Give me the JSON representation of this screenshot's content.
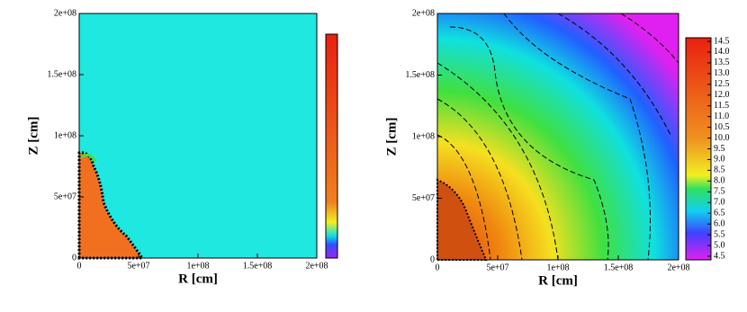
{
  "chart_data": [
    {
      "type": "heatmap",
      "xlabel": "R [cm]",
      "ylabel": "Z [cm]",
      "xlim": [
        0,
        200000000
      ],
      "ylim": [
        0,
        200000000
      ],
      "xticks": [
        0,
        {
          "value": 50000000,
          "label": "5e+07"
        },
        {
          "value": 100000000,
          "label": "1e+08"
        },
        {
          "value": 150000000,
          "label": "1.5e+08"
        },
        {
          "value": 200000000,
          "label": "2e+08"
        }
      ],
      "yticks": [
        0,
        {
          "value": 50000000,
          "label": "5e+07"
        },
        {
          "value": 100000000,
          "label": "1e+08"
        },
        {
          "value": 150000000,
          "label": "1.5e+08"
        },
        {
          "value": 200000000,
          "label": "2e+08"
        }
      ]
    },
    {
      "type": "heatmap",
      "xlabel": "R [cm]",
      "ylabel": "Z [cm]",
      "xlim": [
        0,
        200000000
      ],
      "ylim": [
        0,
        200000000
      ],
      "xticks": [
        0,
        {
          "value": 50000000,
          "label": "5e+07"
        },
        {
          "value": 100000000,
          "label": "1e+08"
        },
        {
          "value": 150000000,
          "label": "1.5e+08"
        },
        {
          "value": 200000000,
          "label": "2e+08"
        }
      ],
      "yticks": [
        0,
        {
          "value": 50000000,
          "label": "5e+07"
        },
        {
          "value": 100000000,
          "label": "1e+08"
        },
        {
          "value": 150000000,
          "label": "1.5e+08"
        },
        {
          "value": 200000000,
          "label": "2e+08"
        }
      ],
      "colorbar": {
        "clim": [
          4.5,
          14.5
        ],
        "ticks": [
          4.5,
          {
            "value": 5,
            "label": "5.0"
          },
          5.5,
          {
            "value": 6,
            "label": "6.0"
          },
          6.5,
          {
            "value": 7,
            "label": "7.0"
          },
          7.5,
          {
            "value": 8,
            "label": "8.0"
          },
          8.5,
          {
            "value": 9,
            "label": "9.0"
          },
          9.5,
          {
            "value": 10,
            "label": "10.0"
          },
          10.5,
          {
            "value": 11,
            "label": "11.0"
          },
          11.5,
          {
            "value": 12,
            "label": "12.0"
          },
          12.5,
          {
            "value": 13,
            "label": "13.0"
          },
          13.5,
          {
            "value": 14,
            "label": "14.0"
          },
          14.5
        ]
      }
    }
  ]
}
